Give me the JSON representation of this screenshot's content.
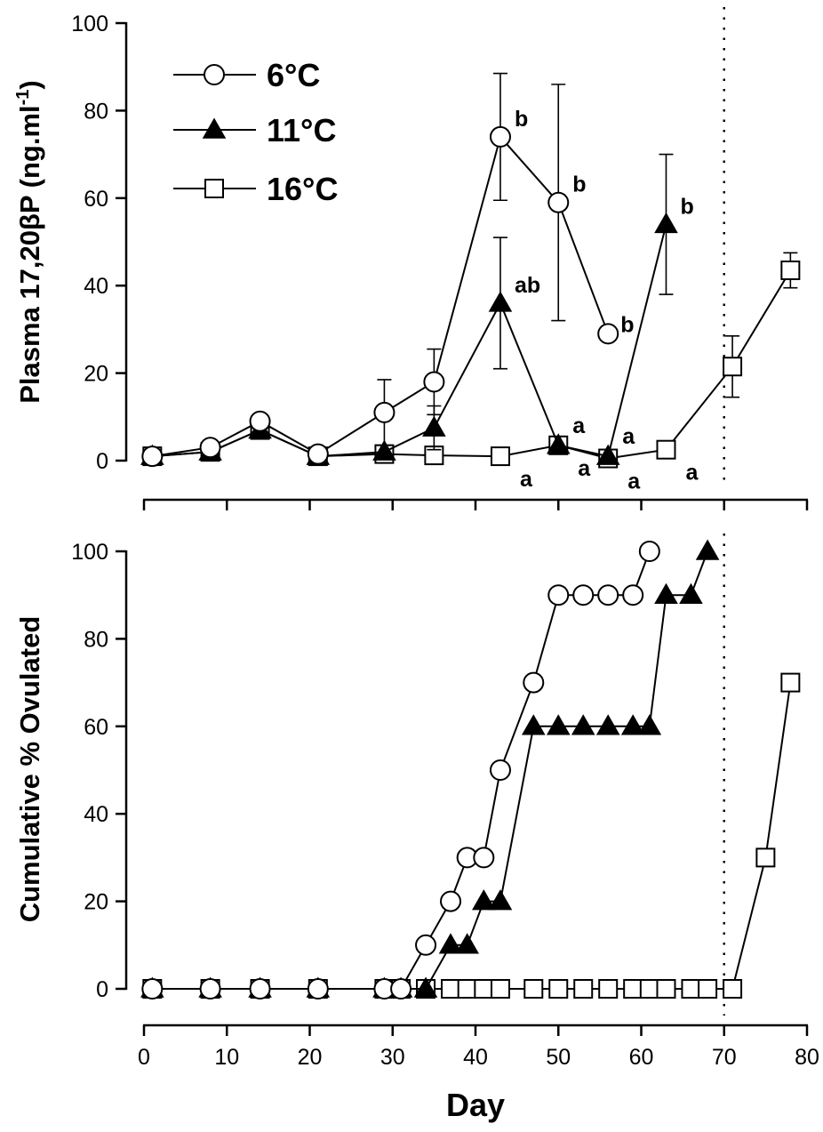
{
  "chart_data": [
    {
      "type": "line",
      "ylabel": "Plasma 17,20βP (ng.ml",
      "ylabel_superscript": "-1",
      "ylabel_suffix": ")",
      "ylim": [
        0,
        100
      ],
      "yticks": [
        0,
        20,
        40,
        60,
        80,
        100
      ],
      "xlim": [
        0,
        80
      ],
      "xticks": [
        0,
        10,
        20,
        30,
        40,
        50,
        60,
        70,
        80
      ],
      "reference_line_x": 70,
      "legend": {
        "position": "top-left"
      },
      "series": [
        {
          "name": "6°C",
          "marker": "circle-open",
          "points": [
            {
              "x": 1,
              "y": 1
            },
            {
              "x": 8,
              "y": 3
            },
            {
              "x": 14,
              "y": 9
            },
            {
              "x": 21,
              "y": 1.5
            },
            {
              "x": 29,
              "y": 11,
              "err": 7.5
            },
            {
              "x": 35,
              "y": 18,
              "err": 7.5
            },
            {
              "x": 43,
              "y": 74,
              "err": 14.5,
              "label": "b"
            },
            {
              "x": 50,
              "y": 59,
              "err": 27,
              "label": "b"
            },
            {
              "x": 56,
              "y": 29,
              "label": "b"
            }
          ]
        },
        {
          "name": "11°C",
          "marker": "triangle-filled",
          "points": [
            {
              "x": 1,
              "y": 1
            },
            {
              "x": 8,
              "y": 2
            },
            {
              "x": 14,
              "y": 7
            },
            {
              "x": 21,
              "y": 1
            },
            {
              "x": 29,
              "y": 2
            },
            {
              "x": 35,
              "y": 7.5,
              "err": 5
            },
            {
              "x": 43,
              "y": 36,
              "err": 15,
              "label": "ab"
            },
            {
              "x": 50,
              "y": 3.5,
              "label": "a"
            },
            {
              "x": 56,
              "y": 1,
              "label": "a"
            },
            {
              "x": 63,
              "y": 54,
              "err": 16,
              "label": "b"
            }
          ]
        },
        {
          "name": "16°C",
          "marker": "square-open",
          "points": [
            {
              "x": 1,
              "y": 1
            },
            {
              "x": 8,
              "y": 2
            },
            {
              "x": 14,
              "y": 7
            },
            {
              "x": 21,
              "y": 1
            },
            {
              "x": 29,
              "y": 1.5
            },
            {
              "x": 35,
              "y": 1.2
            },
            {
              "x": 43,
              "y": 1,
              "label": "a"
            },
            {
              "x": 50,
              "y": 3.5,
              "label": "a"
            },
            {
              "x": 56,
              "y": 0.5,
              "label": "a"
            },
            {
              "x": 63,
              "y": 2.5,
              "label": "a"
            },
            {
              "x": 71,
              "y": 21.5,
              "err": 7
            },
            {
              "x": 78,
              "y": 43.5,
              "err": 4
            }
          ]
        }
      ]
    },
    {
      "type": "line",
      "xlabel": "Day",
      "ylabel": "Cumulative % Ovulated",
      "ylim": [
        0,
        100
      ],
      "yticks": [
        0,
        20,
        40,
        60,
        80,
        100
      ],
      "xlim": [
        0,
        80
      ],
      "xticks": [
        0,
        10,
        20,
        30,
        40,
        50,
        60,
        70,
        80
      ],
      "reference_line_x": 70,
      "series": [
        {
          "name": "6°C",
          "marker": "circle-open",
          "x": [
            1,
            8,
            14,
            21,
            29,
            31,
            34,
            37,
            39,
            41,
            43,
            47,
            50,
            53,
            56,
            59,
            61
          ],
          "y": [
            0,
            0,
            0,
            0,
            0,
            0,
            10,
            20,
            30,
            30,
            50,
            70,
            90,
            90,
            90,
            90,
            100
          ]
        },
        {
          "name": "11°C",
          "marker": "triangle-filled",
          "x": [
            1,
            8,
            14,
            21,
            29,
            31,
            34,
            37,
            39,
            41,
            43,
            47,
            50,
            53,
            56,
            59,
            61,
            63,
            66,
            68
          ],
          "y": [
            0,
            0,
            0,
            0,
            0,
            0,
            0,
            10,
            10,
            20,
            20,
            60,
            60,
            60,
            60,
            60,
            60,
            90,
            90,
            100
          ]
        },
        {
          "name": "16°C",
          "marker": "square-open",
          "x": [
            1,
            8,
            14,
            21,
            29,
            31,
            34,
            37,
            39,
            41,
            43,
            47,
            50,
            53,
            56,
            59,
            61,
            63,
            66,
            68,
            71,
            75,
            78
          ],
          "y": [
            0,
            0,
            0,
            0,
            0,
            0,
            0,
            0,
            0,
            0,
            0,
            0,
            0,
            0,
            0,
            0,
            0,
            0,
            0,
            0,
            0,
            30,
            70
          ]
        }
      ]
    }
  ]
}
